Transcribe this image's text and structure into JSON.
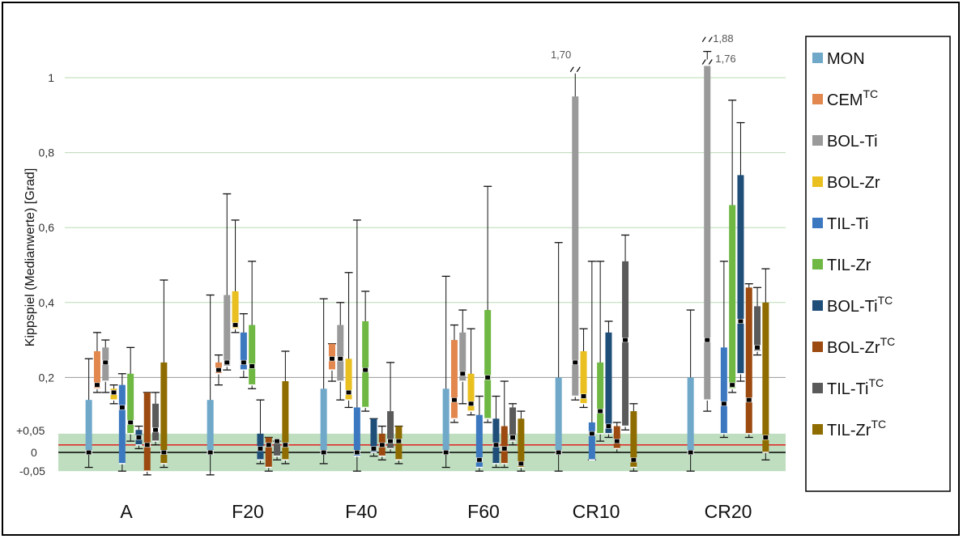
{
  "chart_data": {
    "type": "box",
    "ylabel": "Kippspiel (Medianwerte) [Grad]",
    "ylim": [
      -0.05,
      1.1
    ],
    "yticks": [
      {
        "value": 1,
        "label": "1"
      },
      {
        "value": 0.8,
        "label": "0,8"
      },
      {
        "value": 0.6,
        "label": "0,6"
      },
      {
        "value": 0.4,
        "label": "0,4"
      },
      {
        "value": 0.2,
        "label": "0,2"
      },
      {
        "value": 0.05,
        "label": "+0,05"
      },
      {
        "value": 0,
        "label": "0"
      },
      {
        "value": -0.05,
        "label": "-0,05"
      }
    ],
    "tolerance_band": [
      -0.05,
      0.05
    ],
    "reference_line": 0.02,
    "categories": [
      "A",
      "F20",
      "F40",
      "F60",
      "CR10",
      "CR20"
    ],
    "legend": "right",
    "series": [
      {
        "name": "MON",
        "sup": "",
        "color": "#6fa8c9",
        "boxes": [
          [
            -0.04,
            0,
            0,
            0.14,
            0.25
          ],
          [
            -0.06,
            0,
            0,
            0.14,
            0.42
          ],
          [
            -0.03,
            0,
            0,
            0.17,
            0.41
          ],
          [
            -0.04,
            0,
            0,
            0.17,
            0.47
          ],
          [
            -0.05,
            0,
            0,
            0.2,
            0.56
          ],
          [
            -0.05,
            0,
            0,
            0.2,
            0.38
          ]
        ]
      },
      {
        "name": "CEM",
        "sup": "TC",
        "color": "#e2874e",
        "boxes": [
          [
            0.16,
            0.17,
            0.18,
            0.27,
            0.32
          ],
          [
            0.18,
            0.21,
            0.22,
            0.24,
            0.26
          ],
          [
            0.19,
            0.22,
            0.25,
            0.29,
            0.29
          ],
          [
            0.08,
            0.09,
            0.14,
            0.3,
            0.34
          ],
          [],
          []
        ]
      },
      {
        "name": "BOL-Ti",
        "sup": "",
        "color": "#9a9a9a",
        "boxes": [
          [
            0.16,
            0.19,
            0.24,
            0.28,
            0.3
          ],
          [
            0.22,
            0.23,
            0.24,
            0.42,
            0.69
          ],
          [
            0.14,
            0.19,
            0.25,
            0.34,
            0.4
          ],
          [
            0.13,
            0.19,
            0.21,
            0.32,
            0.38
          ],
          [
            0.14,
            0.15,
            0.24,
            0.95,
            1.02
          ],
          [
            0.11,
            0.14,
            0.3,
            1.04,
            1.07
          ]
        ]
      },
      {
        "name": "BOL-Zr",
        "sup": "",
        "color": "#e9c020",
        "boxes": [
          [
            0.13,
            0.14,
            0.16,
            0.17,
            0.18
          ],
          [
            0.32,
            0.33,
            0.34,
            0.43,
            0.62
          ],
          [
            0.12,
            0.14,
            0.16,
            0.25,
            0.48
          ],
          [
            0.1,
            0.11,
            0.13,
            0.21,
            0.33
          ],
          [
            0.12,
            0.13,
            0.15,
            0.27,
            0.33
          ],
          []
        ]
      },
      {
        "name": "TIL-Ti",
        "sup": "",
        "color": "#3b78c0",
        "boxes": [
          [
            -0.05,
            -0.03,
            0.12,
            0.18,
            0.21
          ],
          [
            0.2,
            0.22,
            0.24,
            0.32,
            0.37
          ],
          [
            -0.05,
            -0.01,
            0,
            0.12,
            0.62
          ],
          [
            -0.05,
            -0.04,
            -0.02,
            0.1,
            0.15
          ],
          [
            -0.02,
            -0.02,
            0.05,
            0.08,
            0.51
          ],
          [
            0.04,
            0.05,
            0.13,
            0.28,
            0.51
          ]
        ]
      },
      {
        "name": "TIL-Zr",
        "sup": "",
        "color": "#6fb843",
        "boxes": [
          [
            0.03,
            0.05,
            0.08,
            0.21,
            0.28
          ],
          [
            0.17,
            0.18,
            0.23,
            0.34,
            0.51
          ],
          [
            0.11,
            0.12,
            0.22,
            0.35,
            0.43
          ],
          [
            0.08,
            0.09,
            0.2,
            0.38,
            0.71
          ],
          [
            0.03,
            0.05,
            0.11,
            0.24,
            0.51
          ],
          [
            0.16,
            0.17,
            0.18,
            0.66,
            0.94
          ]
        ]
      },
      {
        "name": "BOL-Ti",
        "sup": "TC",
        "color": "#1f4e79",
        "boxes": [
          [
            0.01,
            0.02,
            0.04,
            0.06,
            0.07
          ],
          [
            -0.03,
            -0.02,
            0.01,
            0.05,
            0.14
          ],
          [
            -0.01,
            0,
            0.01,
            0.09,
            0.09
          ],
          [
            -0.04,
            -0.03,
            0.02,
            0.09,
            0.15
          ],
          [
            0.04,
            0.05,
            0.07,
            0.32,
            0.35
          ],
          [
            0.19,
            0.21,
            0.35,
            0.74,
            0.88
          ]
        ]
      },
      {
        "name": "BOL-Zr",
        "sup": "TC",
        "color": "#9c4a10",
        "boxes": [
          [
            -0.06,
            -0.05,
            0.02,
            0.16,
            0.16
          ],
          [
            -0.05,
            -0.04,
            0.02,
            0.04,
            0.04
          ],
          [
            -0.02,
            -0.01,
            0.02,
            0.05,
            0.07
          ],
          [
            -0.04,
            -0.03,
            0.01,
            0.07,
            0.19
          ],
          [
            0,
            0.01,
            0.03,
            0.07,
            0.08
          ],
          [
            0.04,
            0.05,
            0.14,
            0.44,
            0.45
          ]
        ]
      },
      {
        "name": "TIL-Ti",
        "sup": "TC",
        "color": "#5a5a5a",
        "boxes": [
          [
            0.02,
            0.03,
            0.06,
            0.13,
            0.16
          ],
          [
            -0.02,
            -0.01,
            0.03,
            0.03,
            0.03
          ],
          [
            0,
            0.01,
            0.03,
            0.11,
            0.24
          ],
          [
            0.02,
            0.03,
            0.04,
            0.12,
            0.13
          ],
          [
            0.06,
            0.07,
            0.3,
            0.51,
            0.58
          ],
          [
            0.26,
            0.27,
            0.28,
            0.39,
            0.44
          ]
        ]
      },
      {
        "name": "TIL-Zr",
        "sup": "TC",
        "color": "#8f6c00",
        "boxes": [
          [
            -0.04,
            -0.03,
            0,
            0.24,
            0.46
          ],
          [
            -0.03,
            -0.02,
            0.02,
            0.19,
            0.27
          ],
          [
            -0.03,
            -0.02,
            0.03,
            0.07,
            0.07
          ],
          [
            -0.05,
            -0.04,
            -0.03,
            0.09,
            0.11
          ],
          [
            -0.05,
            -0.04,
            -0.02,
            0.11,
            0.13
          ],
          [
            -0.02,
            0,
            0.04,
            0.4,
            0.49
          ]
        ]
      }
    ],
    "annotations": [
      {
        "category": "CR10",
        "series": 2,
        "label": "1,70"
      },
      {
        "category": "CR20",
        "series": 2,
        "label": "1,88"
      },
      {
        "category": "CR20",
        "series": 2,
        "label": "1,76"
      }
    ]
  }
}
